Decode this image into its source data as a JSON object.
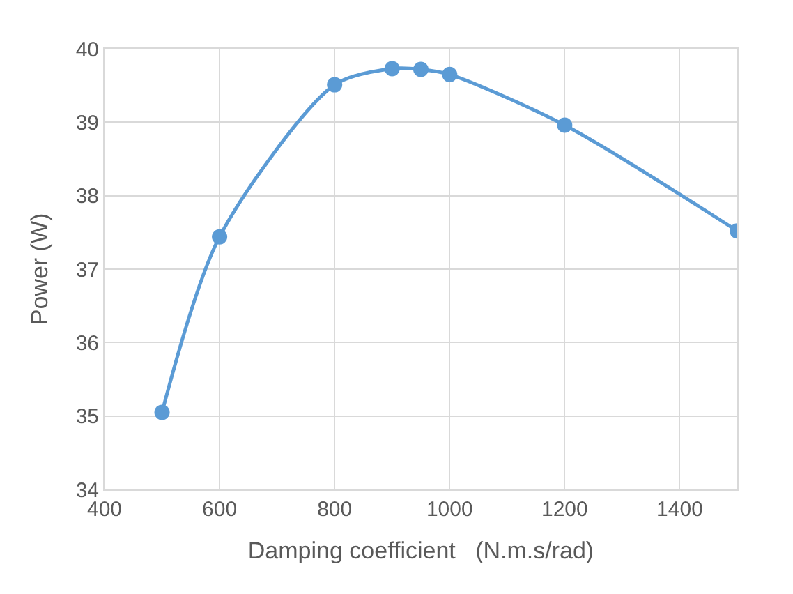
{
  "chart_data": {
    "type": "line",
    "xlabel": "Damping coefficient   (N.m.s/rad)",
    "ylabel": "Power (W)",
    "x": [
      500,
      600,
      800,
      900,
      950,
      1000,
      1200,
      1500
    ],
    "series": [
      {
        "color": "#5b9bd5",
        "values": [
          35.05,
          37.44,
          39.51,
          39.73,
          39.72,
          39.65,
          38.96,
          37.52
        ]
      }
    ],
    "xlim": [
      400,
      1500
    ],
    "xticks": [
      400,
      600,
      800,
      1000,
      1200,
      1400
    ],
    "ylim": [
      34,
      40
    ],
    "yticks": [
      34,
      35,
      36,
      37,
      38,
      39,
      40
    ],
    "grid": true,
    "marker": "circle",
    "line_style": "solid",
    "legend": false
  }
}
